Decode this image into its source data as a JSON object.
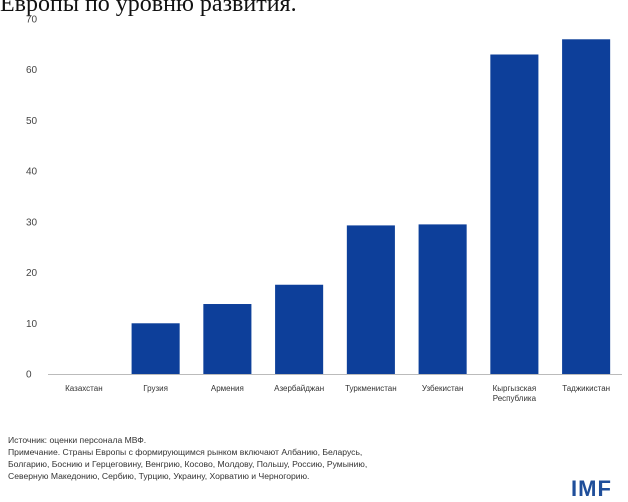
{
  "caption": "Европы по уровню развития.",
  "chart_data": {
    "type": "bar",
    "categories": [
      "Казахстан",
      "Грузия",
      "Армения",
      "Азербайджан",
      "Туркменистан",
      "Узбекистан",
      "Кыргызская Республика",
      "Таджикистан"
    ],
    "category_lines": [
      [
        "Казахстан"
      ],
      [
        "Грузия"
      ],
      [
        "Армения"
      ],
      [
        "Азербайджан"
      ],
      [
        "Туркменистан"
      ],
      [
        "Узбекистан"
      ],
      [
        "Кыргызская",
        "Республика"
      ],
      [
        "Таджикистан"
      ]
    ],
    "values": [
      0,
      10,
      13.8,
      17.6,
      29.3,
      29.5,
      63,
      66
    ],
    "ylim": [
      0,
      70
    ],
    "yticks": [
      0,
      10,
      20,
      30,
      40,
      50,
      60,
      70
    ],
    "bar_color": "#0d3f9a",
    "grid": false,
    "title": "",
    "xlabel": "",
    "ylabel": ""
  },
  "footnote": {
    "source": "Источник: оценки персонала МВФ.",
    "note_lines": [
      "Примечание. Страны Европы с формирующимся рынком включают Албанию, Беларусь,",
      "Болгарию, Боснию и Герцеговину, Венгрию, Косово, Молдову, Польшу, Россию, Румынию,",
      "Северную Македонию, Сербию, Турцию, Украину, Хорватию и Черногорию."
    ]
  },
  "logo": {
    "text": "IMF"
  }
}
